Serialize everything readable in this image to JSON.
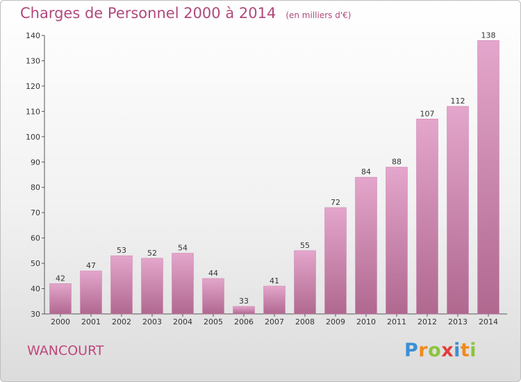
{
  "colors": {
    "bar": "#d58ab4",
    "accent": "#b0497c"
  },
  "chart_data": {
    "type": "bar",
    "title": "Charges de Personnel 2000 à 2014",
    "subtitle": "(en milliers d'€)",
    "xlabel": "",
    "ylabel": "",
    "ylim": [
      30,
      140
    ],
    "y_ticks": [
      30,
      40,
      50,
      60,
      70,
      80,
      90,
      100,
      110,
      120,
      130,
      140
    ],
    "grid": false,
    "categories": [
      "2000",
      "2001",
      "2002",
      "2003",
      "2004",
      "2005",
      "2006",
      "2007",
      "2008",
      "2009",
      "2010",
      "2011",
      "2012",
      "2013",
      "2014"
    ],
    "values": [
      42,
      47,
      53,
      52,
      54,
      44,
      33,
      41,
      55,
      72,
      84,
      88,
      107,
      112,
      138
    ]
  },
  "footer": {
    "city": "WANCOURT",
    "logo": "Proxiti"
  }
}
